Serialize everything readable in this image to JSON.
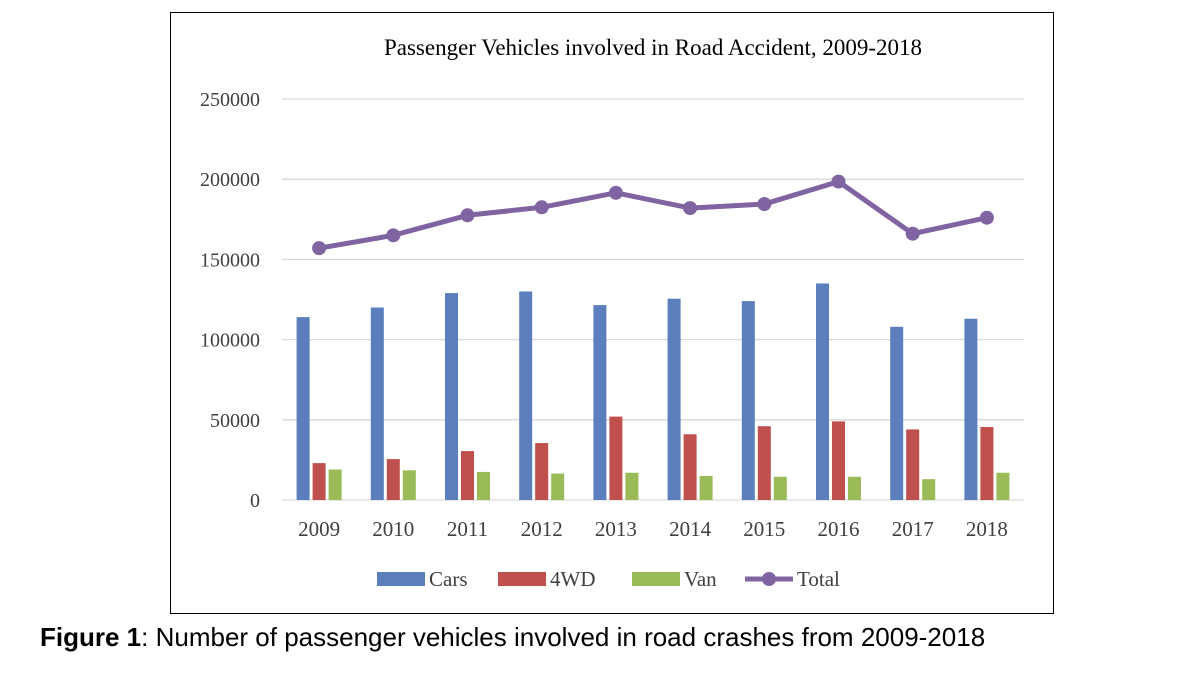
{
  "chart_data": {
    "type": "bar",
    "title": "Passenger Vehicles involved in Road Accident, 2009-2018",
    "categories": [
      "2009",
      "2010",
      "2011",
      "2012",
      "2013",
      "2014",
      "2015",
      "2016",
      "2017",
      "2018"
    ],
    "series": [
      {
        "name": "Cars",
        "kind": "bar",
        "color": "#5b7fbd",
        "values": [
          114000,
          120000,
          129000,
          130000,
          121500,
          125500,
          124000,
          135000,
          108000,
          113000
        ]
      },
      {
        "name": "4WD",
        "kind": "bar",
        "color": "#bf504d",
        "values": [
          23000,
          25500,
          30500,
          35500,
          52000,
          41000,
          46000,
          49000,
          44000,
          45500
        ]
      },
      {
        "name": "Van",
        "kind": "bar",
        "color": "#9bbb59",
        "values": [
          19000,
          18500,
          17500,
          16500,
          17000,
          15000,
          14500,
          14500,
          13000,
          17000
        ]
      },
      {
        "name": "Total",
        "kind": "line",
        "color": "#8064a2",
        "values": [
          157000,
          165000,
          177500,
          182500,
          191500,
          182000,
          184500,
          198500,
          166000,
          176000
        ]
      }
    ],
    "ylim": [
      0,
      250000
    ],
    "yticks": [
      0,
      50000,
      100000,
      150000,
      200000,
      250000
    ],
    "grid": true,
    "legend": "bottom",
    "xlabel": "",
    "ylabel": ""
  },
  "caption": {
    "label": "Figure 1",
    "text": ": Number of passenger vehicles involved in road crashes from 2009-2018"
  }
}
